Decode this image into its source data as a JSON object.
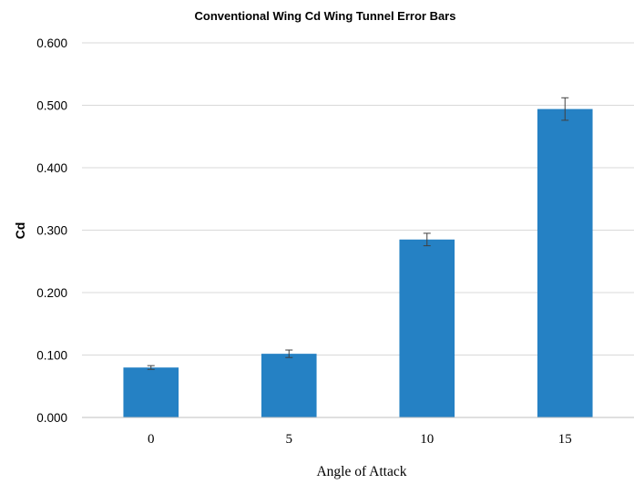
{
  "chart_data": {
    "type": "bar",
    "title": "Conventional Wing Cd Wing Tunnel Error Bars",
    "xlabel": "Angle of Attack",
    "ylabel": "Cd",
    "categories": [
      "0",
      "5",
      "10",
      "15"
    ],
    "values": [
      0.08,
      0.102,
      0.285,
      0.494
    ],
    "error_bars": [
      0.003,
      0.006,
      0.01,
      0.018
    ],
    "ylim": [
      0,
      0.6
    ],
    "yticks": [
      "0.000",
      "0.100",
      "0.200",
      "0.300",
      "0.400",
      "0.500",
      "0.600"
    ],
    "grid": true,
    "legend": "none",
    "bar_color": "#2581c4"
  }
}
